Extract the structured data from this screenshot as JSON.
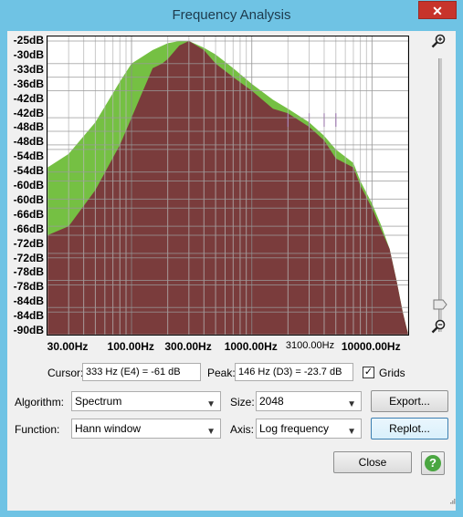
{
  "window": {
    "title": "Frequency Analysis",
    "close_glyph": "✕"
  },
  "plot": {
    "y_ticks": [
      "-25dB",
      "-30dB",
      "-33dB",
      "-36dB",
      "-42dB",
      "-42dB",
      "-48dB",
      "-48dB",
      "-54dB",
      "-54dB",
      "-60dB",
      "-60dB",
      "-66dB",
      "-66dB",
      "-72dB",
      "-72dB",
      "-78dB",
      "-78dB",
      "-84dB",
      "-84dB",
      "-90dB"
    ],
    "x_ticks": [
      {
        "label": "30.00Hz",
        "small": false
      },
      {
        "label": "100.00Hz",
        "small": false
      },
      {
        "label": "300.00Hz",
        "small": false
      },
      {
        "label": "1000.00Hz",
        "small": false
      },
      {
        "label": "3100.00Hz",
        "small": true
      },
      {
        "label": "10000.00Hz",
        "small": false
      }
    ],
    "colors": {
      "green": "#75c043",
      "maroon": "#7a3c3c",
      "purple": "#8a3bb0"
    }
  },
  "chart_data": {
    "type": "area",
    "x_scale": "log",
    "x_tick_labels": [
      "30.00Hz",
      "100.00Hz",
      "300.00Hz",
      "1000.00Hz",
      "3100.00Hz",
      "10000.00Hz"
    ],
    "y_tick_labels": [
      "-25dB",
      "-30dB",
      "-33dB",
      "-36dB",
      "-42dB",
      "-48dB",
      "-54dB",
      "-60dB",
      "-66dB",
      "-72dB",
      "-78dB",
      "-84dB",
      "-90dB"
    ],
    "ylim": [
      -90,
      -24
    ],
    "grid": true,
    "series": [
      {
        "x": [
          20,
          30,
          50,
          80,
          100,
          150,
          200,
          250,
          300,
          400,
          500,
          700,
          1000,
          1500,
          2000,
          3000,
          4000,
          5000,
          7000,
          8000,
          10000,
          12000,
          14000,
          16000,
          18000,
          20000
        ],
        "y": [
          -53,
          -50,
          -43,
          -34,
          -30,
          -27,
          -25.5,
          -25,
          -25,
          -26.5,
          -28,
          -31,
          -34.5,
          -38,
          -40,
          -43,
          -46,
          -49,
          -52,
          -56,
          -61,
          -66,
          -71,
          -78,
          -85,
          -90
        ]
      },
      {
        "x": [
          20,
          30,
          50,
          80,
          100,
          120,
          150,
          180,
          200,
          250,
          300,
          400,
          500,
          700,
          1000,
          1500,
          2000,
          3000,
          4000,
          5000,
          7000,
          8000,
          10000,
          12000,
          14000,
          16000,
          18000,
          20000
        ],
        "y": [
          -68,
          -66,
          -58,
          -48,
          -42,
          -37,
          -31,
          -30,
          -29,
          -26,
          -25,
          -27,
          -30,
          -33,
          -36,
          -40,
          -41,
          -44,
          -47,
          -51,
          -53,
          -57,
          -62,
          -67,
          -71,
          -78,
          -85,
          -90
        ]
      }
    ]
  },
  "cursor": {
    "label": "Cursor:",
    "value": "333 Hz (E4) = -61 dB"
  },
  "peak": {
    "label": "Peak:",
    "value": "146 Hz (D3) = -23.7 dB"
  },
  "grids": {
    "label": "Grids",
    "checked_glyph": "✓"
  },
  "algorithm": {
    "label": "Algorithm:",
    "value": "Spectrum"
  },
  "size": {
    "label": "Size:",
    "value": "2048"
  },
  "function": {
    "label": "Function:",
    "value": "Hann window"
  },
  "axis": {
    "label": "Axis:",
    "value": "Log frequency"
  },
  "buttons": {
    "export": "Export...",
    "replot": "Replot...",
    "close": "Close",
    "help": "?"
  }
}
